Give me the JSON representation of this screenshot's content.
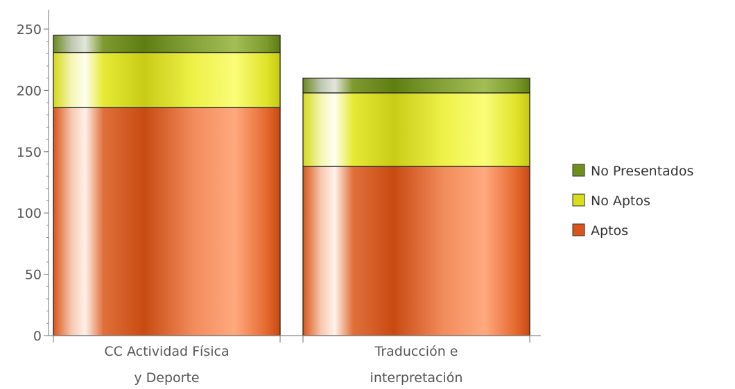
{
  "chart_data": {
    "type": "bar",
    "stacked": true,
    "categories": [
      [
        "CC Actividad Física",
        "y Deporte"
      ],
      [
        "Traducción e",
        "interpretación"
      ]
    ],
    "series": [
      {
        "name": "Aptos",
        "values": [
          186,
          138
        ],
        "color": "#D9551A"
      },
      {
        "name": "No Aptos",
        "values": [
          45,
          60
        ],
        "color": "#D8DE1E"
      },
      {
        "name": "No Presentados",
        "values": [
          14,
          12
        ],
        "color": "#6E8F1C"
      }
    ],
    "ylim": [
      0,
      250
    ],
    "yticks": [
      0,
      50,
      100,
      150,
      200,
      250
    ],
    "legend_items": [
      "No Presentados",
      "No Aptos",
      "Aptos"
    ],
    "legend_placement": "right",
    "grid": false
  }
}
